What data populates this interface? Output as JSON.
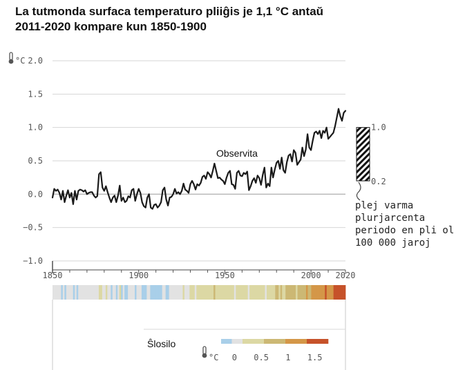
{
  "title": {
    "line1": "La tutmonda surfaca temperaturo pliiĝis je 1,1 °C antaŭ",
    "line2": "2011-2020 kompare kun 1850-1900"
  },
  "colors": {
    "line": "#1a1a1a",
    "grid": "#d6d6d6",
    "zero": "#b5b5b5",
    "stripe_cold": "#a9cfe9",
    "stripe_neutral": "#e2e2e2",
    "stripe_warm1": "#dcd8a4",
    "stripe_warm2": "#ccb874",
    "stripe_warm3": "#d49748",
    "stripe_hot": "#c6522a"
  },
  "chart_data": {
    "type": "line",
    "title": "La tutmonda surfaca temperaturo pliiĝis je 1,1 °C antaŭ 2011-2020 kompare kun 1850-1900",
    "ylabel": "°C",
    "xlabel": "",
    "xlim": [
      1850,
      2020
    ],
    "ylim": [
      -1.0,
      2.0
    ],
    "y_ticks": [
      2.0,
      1.5,
      1.0,
      0.5,
      0.0,
      -0.5,
      -1.0
    ],
    "y_tick_labels": [
      "2.0",
      "1.5",
      "1.0",
      "0.5",
      "0.0",
      "−0.5",
      "−1.0"
    ],
    "x_ticks": [
      1850,
      1900,
      1950,
      2000,
      2020
    ],
    "x_tick_labels": [
      "1850",
      "1900",
      "1950",
      "2000",
      "2020"
    ],
    "series": [
      {
        "name": "Observita",
        "x": [
          1850,
          1851,
          1852,
          1853,
          1854,
          1855,
          1856,
          1857,
          1858,
          1859,
          1860,
          1861,
          1862,
          1863,
          1864,
          1865,
          1866,
          1867,
          1868,
          1869,
          1870,
          1871,
          1872,
          1873,
          1874,
          1875,
          1876,
          1877,
          1878,
          1879,
          1880,
          1881,
          1882,
          1883,
          1884,
          1885,
          1886,
          1887,
          1888,
          1889,
          1890,
          1891,
          1892,
          1893,
          1894,
          1895,
          1896,
          1897,
          1898,
          1899,
          1900,
          1901,
          1902,
          1903,
          1904,
          1905,
          1906,
          1907,
          1908,
          1909,
          1910,
          1911,
          1912,
          1913,
          1914,
          1915,
          1916,
          1917,
          1918,
          1919,
          1920,
          1921,
          1922,
          1923,
          1924,
          1925,
          1926,
          1927,
          1928,
          1929,
          1930,
          1931,
          1932,
          1933,
          1934,
          1935,
          1936,
          1937,
          1938,
          1939,
          1940,
          1941,
          1942,
          1943,
          1944,
          1945,
          1946,
          1947,
          1948,
          1949,
          1950,
          1951,
          1952,
          1953,
          1954,
          1955,
          1956,
          1957,
          1958,
          1959,
          1960,
          1961,
          1962,
          1963,
          1964,
          1965,
          1966,
          1967,
          1968,
          1969,
          1970,
          1971,
          1972,
          1973,
          1974,
          1975,
          1976,
          1977,
          1978,
          1979,
          1980,
          1981,
          1982,
          1983,
          1984,
          1985,
          1986,
          1987,
          1988,
          1989,
          1990,
          1991,
          1992,
          1993,
          1994,
          1995,
          1996,
          1997,
          1998,
          1999,
          2000,
          2001,
          2002,
          2003,
          2004,
          2005,
          2006,
          2007,
          2008,
          2009,
          2010,
          2011,
          2012,
          2013,
          2014,
          2015,
          2016,
          2017,
          2018,
          2019,
          2020
        ],
        "values": [
          -0.05,
          0.08,
          0.05,
          0.07,
          0.02,
          -0.08,
          0.05,
          -0.12,
          -0.02,
          0.06,
          -0.05,
          0.02,
          -0.15,
          0.05,
          -0.08,
          0.05,
          0.07,
          0.06,
          0.04,
          0.06,
          0.0,
          0.02,
          0.03,
          0.03,
          -0.02,
          -0.05,
          -0.03,
          0.3,
          0.33,
          0.1,
          0.05,
          0.12,
          0.03,
          -0.05,
          -0.12,
          -0.05,
          -0.02,
          -0.12,
          -0.02,
          0.13,
          -0.1,
          -0.05,
          -0.12,
          -0.1,
          -0.03,
          -0.05,
          0.06,
          0.08,
          -0.1,
          0.0,
          0.08,
          0.02,
          -0.12,
          -0.18,
          -0.2,
          -0.05,
          0.0,
          -0.2,
          -0.22,
          -0.16,
          -0.15,
          -0.2,
          -0.17,
          -0.12,
          0.06,
          0.1,
          -0.08,
          -0.17,
          -0.05,
          -0.04,
          0.0,
          0.08,
          0.01,
          0.03,
          0.0,
          0.05,
          0.16,
          0.07,
          0.05,
          0.02,
          0.15,
          0.2,
          0.15,
          0.07,
          0.15,
          0.13,
          0.17,
          0.26,
          0.28,
          0.23,
          0.33,
          0.3,
          0.25,
          0.35,
          0.46,
          0.35,
          0.24,
          0.25,
          0.22,
          0.2,
          0.15,
          0.25,
          0.32,
          0.35,
          0.15,
          0.14,
          0.08,
          0.32,
          0.35,
          0.28,
          0.27,
          0.32,
          0.3,
          0.34,
          0.06,
          0.12,
          0.2,
          0.24,
          0.17,
          0.28,
          0.24,
          0.14,
          0.29,
          0.4,
          0.1,
          0.16,
          0.12,
          0.4,
          0.25,
          0.37,
          0.47,
          0.5,
          0.38,
          0.55,
          0.36,
          0.32,
          0.48,
          0.58,
          0.6,
          0.49,
          0.66,
          0.62,
          0.44,
          0.48,
          0.52,
          0.7,
          0.57,
          0.67,
          0.9,
          0.7,
          0.66,
          0.8,
          0.92,
          0.94,
          0.9,
          0.95,
          0.84,
          0.95,
          0.92,
          1.0,
          0.83,
          0.86,
          0.89,
          0.92,
          1.02,
          1.15,
          1.28,
          1.17,
          1.1,
          1.22,
          1.25
        ]
      }
    ],
    "annotations": {
      "observed_label": "Observita",
      "range_top_label": "1.0",
      "range_bottom_label": "0.2",
      "range_low": 0.2,
      "range_high": 1.0,
      "range_note": [
        "plej varma",
        "plurjarcenta",
        "periodo en pli ol",
        "100 000 jaroj"
      ]
    },
    "warming_stripes": {
      "years": [
        1850,
        2020
      ],
      "bins": [
        "cold",
        "neutral",
        "warm1",
        "warm2",
        "warm3",
        "hot"
      ]
    },
    "legend": {
      "title": "Ŝlosilo",
      "unit": "°C",
      "ticks": [
        "0",
        "0.5",
        "1",
        "1.5"
      ],
      "tick_values": [
        0,
        0.5,
        1,
        1.5
      ],
      "range": [
        -0.25,
        1.75
      ]
    }
  }
}
